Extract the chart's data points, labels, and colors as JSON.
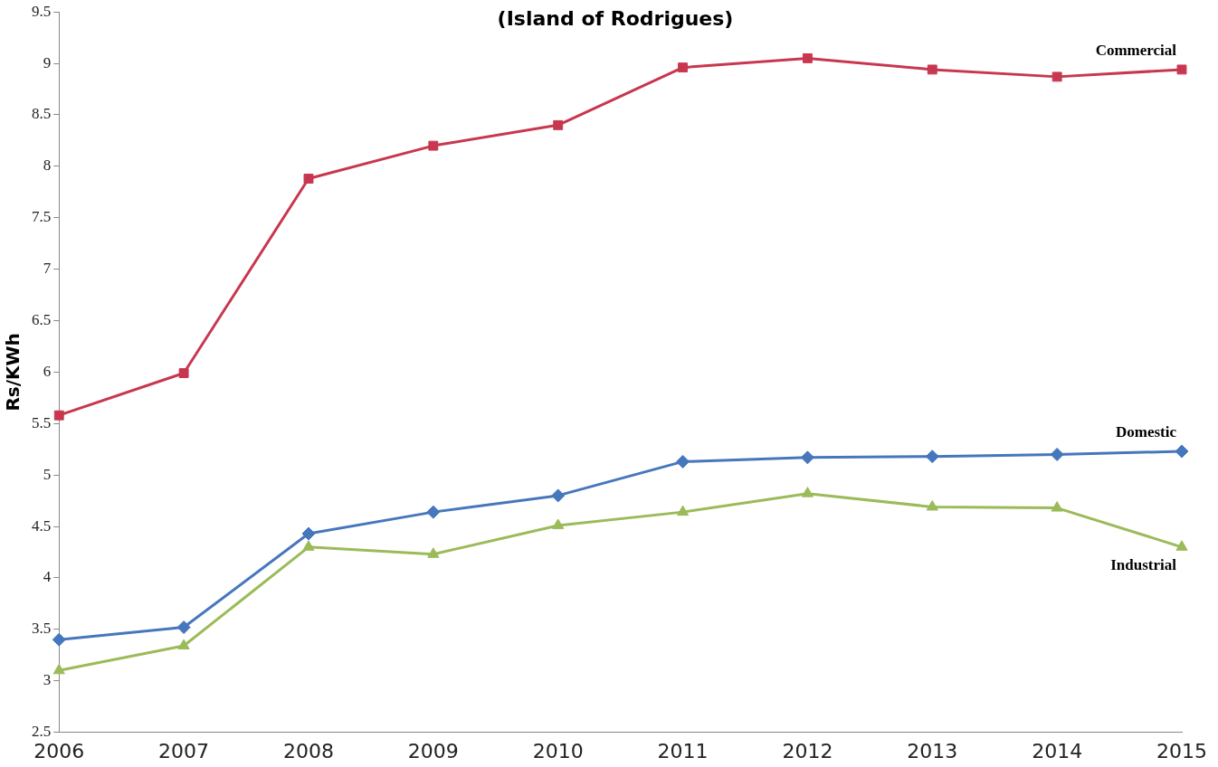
{
  "chart_data": {
    "type": "line",
    "title": "(Island of Rodrigues)",
    "ylabel": "Rs/KWh",
    "categories": [
      "2006",
      "2007",
      "2008",
      "2009",
      "2010",
      "2011",
      "2012",
      "2013",
      "2014",
      "2015"
    ],
    "series": [
      {
        "name": "Commercial",
        "color": "#c8374f",
        "marker": "square",
        "values": [
          5.58,
          5.99,
          7.88,
          8.2,
          8.4,
          8.96,
          9.05,
          8.94,
          8.87,
          8.94
        ]
      },
      {
        "name": "Domestic",
        "color": "#4677bd",
        "marker": "diamond",
        "values": [
          3.4,
          3.52,
          4.43,
          4.64,
          4.8,
          5.13,
          5.17,
          5.18,
          5.2,
          5.23
        ]
      },
      {
        "name": "Industrial",
        "color": "#9bbb59",
        "marker": "triangle",
        "values": [
          3.1,
          3.34,
          4.3,
          4.23,
          4.51,
          4.64,
          4.82,
          4.69,
          4.68,
          4.3
        ]
      }
    ],
    "ylim": [
      2.5,
      9.5
    ],
    "yticks": [
      2.5,
      3,
      3.5,
      4,
      4.5,
      5,
      5.5,
      6,
      6.5,
      7,
      7.5,
      8,
      8.5,
      9,
      9.5
    ],
    "grid": false,
    "legend": false
  }
}
